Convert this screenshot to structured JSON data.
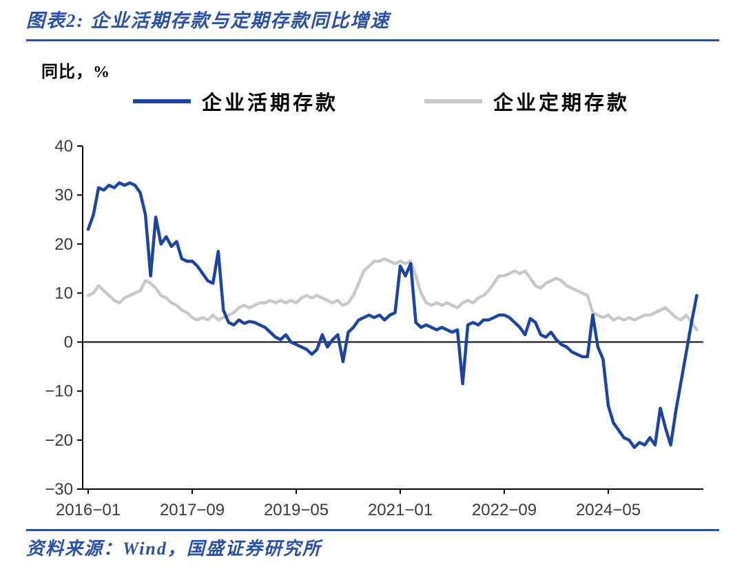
{
  "figure": {
    "title": "图表2: 企业活期存款与定期存款同比增速",
    "source": "资料来源：Wind，国盛证券研究所"
  },
  "colors": {
    "accent": "#2850A5",
    "axis": "#000000",
    "tick_text": "#3A3A3A"
  },
  "chart_data": {
    "type": "line",
    "title": "企业活期存款与定期存款同比增速",
    "ylabel": "同比，%",
    "ylim": [
      -30,
      40
    ],
    "x_start": "2016-01",
    "x_end": "2025-10",
    "frequency": "monthly",
    "grid": false,
    "legend_position": "top",
    "yticks": [
      {
        "value": 40,
        "label": "40"
      },
      {
        "value": 30,
        "label": "30"
      },
      {
        "value": 20,
        "label": "20"
      },
      {
        "value": 10,
        "label": "10"
      },
      {
        "value": 0,
        "label": "0"
      },
      {
        "value": -10,
        "label": "−10"
      },
      {
        "value": -20,
        "label": "−20"
      },
      {
        "value": -30,
        "label": "−30"
      }
    ],
    "xticks": [
      {
        "month": 0,
        "label": "2016−01"
      },
      {
        "month": 20,
        "label": "2017−09"
      },
      {
        "month": 40,
        "label": "2019−05"
      },
      {
        "month": 60,
        "label": "2021−01"
      },
      {
        "month": 80,
        "label": "2022−09"
      },
      {
        "month": 100,
        "label": "2024−05"
      }
    ],
    "series": [
      {
        "key": "demand-deposit-line",
        "name": "企业活期存款",
        "color": "#1B459E",
        "values": [
          23,
          26,
          31.5,
          31,
          32,
          31.5,
          32.5,
          32,
          32.5,
          32,
          30.5,
          26,
          13.5,
          25.5,
          20,
          21.5,
          19.5,
          20.5,
          17,
          16.5,
          16.5,
          15.5,
          14,
          12.5,
          12,
          18.5,
          6.5,
          4,
          3.5,
          4.5,
          3.8,
          4.2,
          4,
          3.5,
          3,
          2,
          1,
          0.5,
          1.5,
          0,
          -0.5,
          -1,
          -1.5,
          -2.5,
          -1.5,
          1.5,
          -1,
          0.5,
          1.5,
          -4,
          2,
          3,
          4.5,
          5,
          5.5,
          5,
          5.5,
          4.5,
          5.5,
          6,
          15.5,
          13.5,
          16,
          4,
          3,
          3.5,
          3,
          2.5,
          3,
          2.5,
          2,
          2.5,
          -8.5,
          3.5,
          4,
          3.5,
          4.5,
          4.5,
          5,
          5.5,
          5.5,
          5,
          4,
          3,
          1.5,
          4.8,
          4,
          1.5,
          1,
          2,
          0.5,
          -0.5,
          -1,
          -2,
          -2.5,
          -3,
          -3,
          5.5,
          -1,
          -3.5,
          -13,
          -16.5,
          -18,
          -19.5,
          -20,
          -21.5,
          -20.5,
          -21,
          -19.5,
          -21,
          -13.5,
          -17.5,
          -21,
          -14,
          -8,
          -2,
          4,
          9.5
        ]
      },
      {
        "key": "time-deposit-line",
        "name": "企业定期存款",
        "color": "#C8C8C8",
        "values": [
          9.5,
          10,
          11.5,
          10.5,
          9.5,
          8.5,
          8,
          9,
          9.5,
          10,
          10.5,
          12.5,
          12,
          11,
          9.5,
          9,
          8,
          7.5,
          6.5,
          6,
          5,
          4.5,
          5,
          4.5,
          5.5,
          4.5,
          5,
          5.5,
          6,
          7,
          7.5,
          7,
          7.5,
          8,
          8,
          8.5,
          8,
          8.5,
          8,
          8.5,
          8,
          9,
          9.5,
          9,
          9.5,
          9,
          8.5,
          8,
          8.5,
          7.5,
          8,
          9.5,
          12,
          14.5,
          15.5,
          16.5,
          16.5,
          17,
          16.5,
          16,
          16.5,
          16,
          16.5,
          13.5,
          10,
          8,
          7.5,
          8,
          7.5,
          8,
          7.5,
          7,
          8,
          8.5,
          8,
          9,
          9.5,
          10.5,
          12,
          13.5,
          13.5,
          14,
          14.5,
          14,
          14.5,
          13,
          11.5,
          11,
          12,
          12.5,
          13,
          12.5,
          11.5,
          11,
          10.5,
          10,
          9.5,
          6,
          5.5,
          5,
          5.5,
          4.5,
          5,
          4.5,
          5,
          4.5,
          5,
          5.5,
          5.5,
          6,
          6.5,
          7,
          6,
          5,
          4.5,
          5.5,
          4,
          2.5
        ]
      }
    ]
  }
}
